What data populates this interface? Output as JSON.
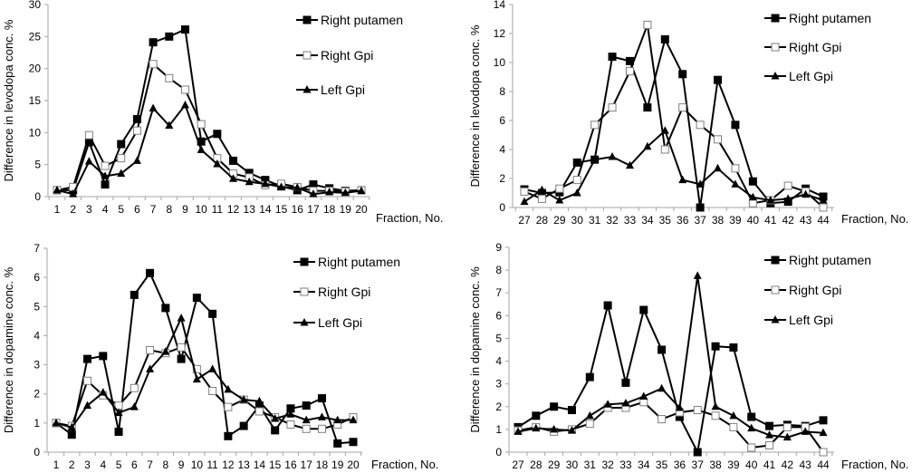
{
  "chart_data": [
    {
      "type": "line",
      "id": "levodopa-1-20",
      "title": "",
      "xlabel": "Fraction, No.",
      "ylabel": "Difference in levodopa conc. %",
      "x": [
        1,
        2,
        3,
        4,
        5,
        6,
        7,
        8,
        9,
        10,
        11,
        12,
        13,
        14,
        15,
        16,
        17,
        18,
        19,
        20
      ],
      "ylim": [
        0,
        30
      ],
      "yticks": [
        0,
        5,
        10,
        15,
        20,
        25,
        30
      ],
      "grid": false,
      "legend": "top-right",
      "series": [
        {
          "name": "Right putamen",
          "marker": "filled-square",
          "values": [
            1.0,
            1.0,
            8.5,
            1.9,
            8.2,
            12.1,
            24.1,
            25.0,
            26.1,
            8.6,
            9.8,
            5.6,
            3.7,
            2.6,
            1.6,
            1.0,
            1.9,
            1.3,
            0.9,
            1.0
          ]
        },
        {
          "name": "Right Gpi",
          "marker": "open-square",
          "values": [
            1.0,
            1.5,
            9.6,
            4.8,
            6.0,
            10.3,
            20.7,
            18.5,
            16.7,
            11.3,
            6.0,
            3.6,
            3.0,
            1.8,
            2.0,
            1.5,
            0.9,
            0.9,
            0.8,
            1.0
          ]
        },
        {
          "name": "Left Gpi",
          "marker": "filled-triangle",
          "values": [
            1.0,
            0.4,
            5.5,
            3.2,
            3.6,
            5.6,
            13.8,
            11.1,
            14.3,
            7.3,
            5.1,
            2.8,
            2.3,
            2.0,
            1.5,
            1.4,
            0.4,
            0.7,
            0.6,
            0.9
          ]
        }
      ]
    },
    {
      "type": "line",
      "id": "levodopa-27-44",
      "title": "",
      "xlabel": "Fraction, No.",
      "ylabel": "Difference in levodopa conc. %",
      "x": [
        27,
        28,
        29,
        30,
        31,
        32,
        33,
        34,
        35,
        36,
        37,
        38,
        39,
        40,
        41,
        42,
        43,
        44
      ],
      "ylim": [
        0,
        14
      ],
      "yticks": [
        0,
        2,
        4,
        6,
        8,
        10,
        12,
        14
      ],
      "grid": false,
      "legend": "top-right",
      "series": [
        {
          "name": "Right putamen",
          "marker": "filled-square",
          "values": [
            1.25,
            1.0,
            1.05,
            3.1,
            3.3,
            10.4,
            10.1,
            6.9,
            11.6,
            9.2,
            0.0,
            8.8,
            5.7,
            1.8,
            0.3,
            0.4,
            1.3,
            0.75
          ]
        },
        {
          "name": "Right Gpi",
          "marker": "open-square",
          "values": [
            1.1,
            0.6,
            1.3,
            1.9,
            5.7,
            6.9,
            9.4,
            12.6,
            4.0,
            6.9,
            5.7,
            4.7,
            2.7,
            0.3,
            0.5,
            1.5,
            1.1,
            0.0
          ]
        },
        {
          "name": "Left Gpi",
          "marker": "filled-triangle",
          "values": [
            0.4,
            1.2,
            0.5,
            1.0,
            3.3,
            3.5,
            2.9,
            4.2,
            5.3,
            1.9,
            1.6,
            2.7,
            1.6,
            0.7,
            0.5,
            0.6,
            0.9,
            0.5
          ]
        }
      ]
    },
    {
      "type": "line",
      "id": "dopamine-1-20",
      "title": "",
      "xlabel": "Fraction, No.",
      "ylabel": "Difference in dopamine conc. %",
      "x": [
        1,
        2,
        3,
        4,
        5,
        6,
        7,
        8,
        9,
        10,
        11,
        12,
        13,
        14,
        15,
        16,
        17,
        18,
        19,
        20
      ],
      "ylim": [
        0,
        7
      ],
      "yticks": [
        0,
        1,
        2,
        3,
        4,
        5,
        6,
        7
      ],
      "grid": false,
      "legend": "top-right",
      "series": [
        {
          "name": "Right putamen",
          "marker": "filled-square",
          "values": [
            1.0,
            0.6,
            3.2,
            3.3,
            0.7,
            5.4,
            6.15,
            4.95,
            3.2,
            5.3,
            4.75,
            0.55,
            0.9,
            1.6,
            0.75,
            1.5,
            1.6,
            1.85,
            0.3,
            0.35
          ]
        },
        {
          "name": "Right Gpi",
          "marker": "open-square",
          "values": [
            1.0,
            0.9,
            2.45,
            1.95,
            1.6,
            2.2,
            3.5,
            3.4,
            3.6,
            2.85,
            2.1,
            1.55,
            1.8,
            1.4,
            1.2,
            0.95,
            0.8,
            0.8,
            0.95,
            1.2
          ]
        },
        {
          "name": "Left Gpi",
          "marker": "filled-triangle",
          "values": [
            1.0,
            0.85,
            1.6,
            2.05,
            1.35,
            1.55,
            2.85,
            3.45,
            4.6,
            2.5,
            2.85,
            2.15,
            1.8,
            1.75,
            1.15,
            1.3,
            1.1,
            1.2,
            1.1,
            1.1
          ]
        }
      ]
    },
    {
      "type": "line",
      "id": "dopamine-27-44",
      "title": "",
      "xlabel": "Fraction, No.",
      "ylabel": "Difference in dopamine conc. %",
      "x": [
        27,
        28,
        29,
        30,
        31,
        32,
        33,
        34,
        35,
        36,
        37,
        38,
        39,
        40,
        41,
        42,
        43,
        44
      ],
      "ylim": [
        0,
        9
      ],
      "yticks": [
        0,
        1,
        2,
        3,
        4,
        5,
        6,
        7,
        8,
        9
      ],
      "grid": false,
      "legend": "top-right",
      "series": [
        {
          "name": "Right putamen",
          "marker": "filled-square",
          "values": [
            1.1,
            1.6,
            2.0,
            1.85,
            3.3,
            6.45,
            3.05,
            6.25,
            4.5,
            1.55,
            0.0,
            4.65,
            4.6,
            1.55,
            1.15,
            1.2,
            1.15,
            1.4
          ]
        },
        {
          "name": "Right Gpi",
          "marker": "open-square",
          "values": [
            0.95,
            1.1,
            0.9,
            1.0,
            1.25,
            1.95,
            1.95,
            2.2,
            1.45,
            1.75,
            1.85,
            1.6,
            1.1,
            0.2,
            0.3,
            1.1,
            1.1,
            0.0
          ]
        },
        {
          "name": "Left Gpi",
          "marker": "filled-triangle",
          "values": [
            0.9,
            1.05,
            1.0,
            0.95,
            1.6,
            2.1,
            2.15,
            2.45,
            2.8,
            1.95,
            7.75,
            2.0,
            1.6,
            1.05,
            0.75,
            0.65,
            0.9,
            0.85
          ]
        }
      ]
    }
  ]
}
